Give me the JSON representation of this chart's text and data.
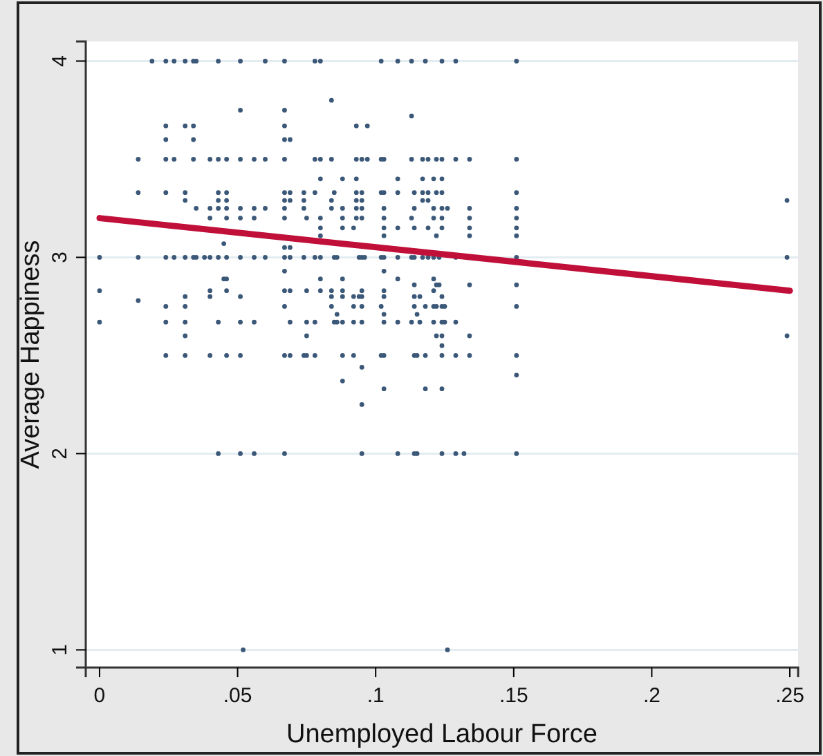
{
  "chart_data": {
    "type": "scatter",
    "xlabel": "Unemployed Labour Force",
    "ylabel": "Average Happiness",
    "xlim": [
      -0.005,
      0.253
    ],
    "ylim": [
      0.91,
      4.1
    ],
    "xticks": [
      {
        "value": 0,
        "label": "0"
      },
      {
        "value": 0.05,
        "label": ".05"
      },
      {
        "value": 0.1,
        "label": ".1"
      },
      {
        "value": 0.15,
        "label": ".15"
      },
      {
        "value": 0.2,
        "label": ".2"
      },
      {
        "value": 0.25,
        "label": ".25"
      }
    ],
    "yticks": [
      1,
      2,
      3,
      4
    ],
    "grid": "y",
    "series": [
      {
        "marker": "circle",
        "color": "#3b5878",
        "x": [
          0.019,
          0.024,
          0.027,
          0.031,
          0.034,
          0.035,
          0.043,
          0.051,
          0.06,
          0.067,
          0.078,
          0.08,
          0.102,
          0.108,
          0.113,
          0.118,
          0.124,
          0.129,
          0.151,
          0.084,
          0.051,
          0.067,
          0.113,
          0.024,
          0.031,
          0.034,
          0.067,
          0.093,
          0.097,
          0.024,
          0.034,
          0.067,
          0.069,
          0.014,
          0.024,
          0.027,
          0.034,
          0.04,
          0.043,
          0.046,
          0.051,
          0.056,
          0.06,
          0.067,
          0.078,
          0.08,
          0.084,
          0.093,
          0.095,
          0.097,
          0.102,
          0.103,
          0.113,
          0.117,
          0.119,
          0.122,
          0.124,
          0.129,
          0.134,
          0.151,
          0.08,
          0.088,
          0.093,
          0.108,
          0.117,
          0.121,
          0.124,
          0.014,
          0.024,
          0.031,
          0.043,
          0.046,
          0.067,
          0.069,
          0.074,
          0.078,
          0.085,
          0.093,
          0.095,
          0.102,
          0.103,
          0.108,
          0.114,
          0.117,
          0.119,
          0.122,
          0.124,
          0.151,
          0.031,
          0.043,
          0.046,
          0.067,
          0.069,
          0.074,
          0.084,
          0.093,
          0.095,
          0.117,
          0.119,
          0.249,
          0.035,
          0.04,
          0.043,
          0.046,
          0.051,
          0.056,
          0.06,
          0.067,
          0.074,
          0.084,
          0.088,
          0.093,
          0.095,
          0.103,
          0.114,
          0.121,
          0.124,
          0.126,
          0.134,
          0.151,
          0.04,
          0.046,
          0.051,
          0.056,
          0.067,
          0.075,
          0.08,
          0.088,
          0.093,
          0.095,
          0.103,
          0.113,
          0.121,
          0.124,
          0.134,
          0.151,
          0.08,
          0.088,
          0.092,
          0.103,
          0.108,
          0.114,
          0.119,
          0.124,
          0.134,
          0.151,
          0.08,
          0.103,
          0.122,
          0.134,
          0.151,
          0.045,
          0.067,
          0.069,
          0.0,
          0.014,
          0.024,
          0.027,
          0.031,
          0.034,
          0.035,
          0.038,
          0.04,
          0.043,
          0.046,
          0.051,
          0.056,
          0.06,
          0.067,
          0.069,
          0.074,
          0.078,
          0.08,
          0.085,
          0.086,
          0.094,
          0.095,
          0.096,
          0.102,
          0.103,
          0.108,
          0.113,
          0.114,
          0.117,
          0.119,
          0.121,
          0.123,
          0.129,
          0.151,
          0.249,
          0.067,
          0.103,
          0.045,
          0.046,
          0.08,
          0.088,
          0.108,
          0.121,
          0.114,
          0.122,
          0.123,
          0.134,
          0.151,
          0.0,
          0.04,
          0.046,
          0.067,
          0.069,
          0.075,
          0.08,
          0.084,
          0.088,
          0.095,
          0.103,
          0.121,
          0.031,
          0.04,
          0.051,
          0.084,
          0.088,
          0.092,
          0.094,
          0.095,
          0.103,
          0.114,
          0.116,
          0.124,
          0.014,
          0.024,
          0.031,
          0.067,
          0.084,
          0.092,
          0.095,
          0.102,
          0.114,
          0.118,
          0.121,
          0.122,
          0.124,
          0.125,
          0.151,
          0.086,
          0.103,
          0.115,
          0.0,
          0.024,
          0.031,
          0.043,
          0.051,
          0.056,
          0.069,
          0.075,
          0.078,
          0.085,
          0.086,
          0.088,
          0.092,
          0.095,
          0.103,
          0.108,
          0.113,
          0.116,
          0.121,
          0.124,
          0.125,
          0.129,
          0.031,
          0.075,
          0.122,
          0.124,
          0.134,
          0.249,
          0.124,
          0.024,
          0.031,
          0.04,
          0.046,
          0.051,
          0.067,
          0.069,
          0.074,
          0.075,
          0.078,
          0.088,
          0.092,
          0.102,
          0.103,
          0.114,
          0.115,
          0.118,
          0.124,
          0.129,
          0.134,
          0.151,
          0.095,
          0.151,
          0.088,
          0.103,
          0.118,
          0.124,
          0.095,
          0.043,
          0.051,
          0.056,
          0.067,
          0.095,
          0.108,
          0.114,
          0.115,
          0.124,
          0.129,
          0.132,
          0.151,
          0.052,
          0.126
        ],
        "values": [
          4,
          4,
          4,
          4,
          4,
          4,
          4,
          4,
          4,
          4,
          4,
          4,
          4,
          4,
          4,
          4,
          4,
          4,
          4,
          3.8,
          3.75,
          3.75,
          3.72,
          3.67,
          3.67,
          3.67,
          3.67,
          3.67,
          3.67,
          3.6,
          3.6,
          3.6,
          3.6,
          3.5,
          3.5,
          3.5,
          3.5,
          3.5,
          3.5,
          3.5,
          3.5,
          3.5,
          3.5,
          3.5,
          3.5,
          3.5,
          3.5,
          3.5,
          3.5,
          3.5,
          3.5,
          3.5,
          3.5,
          3.5,
          3.5,
          3.5,
          3.5,
          3.5,
          3.5,
          3.5,
          3.4,
          3.4,
          3.4,
          3.4,
          3.4,
          3.4,
          3.4,
          3.33,
          3.33,
          3.33,
          3.33,
          3.33,
          3.33,
          3.33,
          3.33,
          3.33,
          3.33,
          3.33,
          3.33,
          3.33,
          3.33,
          3.33,
          3.33,
          3.33,
          3.33,
          3.33,
          3.33,
          3.33,
          3.29,
          3.29,
          3.29,
          3.29,
          3.29,
          3.29,
          3.29,
          3.29,
          3.29,
          3.29,
          3.29,
          3.29,
          3.25,
          3.25,
          3.25,
          3.25,
          3.25,
          3.25,
          3.25,
          3.25,
          3.25,
          3.25,
          3.25,
          3.25,
          3.25,
          3.25,
          3.25,
          3.25,
          3.25,
          3.25,
          3.25,
          3.25,
          3.2,
          3.2,
          3.2,
          3.2,
          3.2,
          3.2,
          3.2,
          3.2,
          3.2,
          3.2,
          3.2,
          3.2,
          3.2,
          3.2,
          3.2,
          3.2,
          3.15,
          3.15,
          3.15,
          3.15,
          3.15,
          3.15,
          3.15,
          3.15,
          3.15,
          3.15,
          3.11,
          3.11,
          3.11,
          3.11,
          3.11,
          3.07,
          3.05,
          3.05,
          3,
          3,
          3,
          3,
          3,
          3,
          3,
          3,
          3,
          3,
          3,
          3,
          3,
          3,
          3,
          3,
          3,
          3,
          3,
          3,
          3,
          3,
          3,
          3,
          3,
          3,
          3,
          3,
          3,
          3,
          3,
          3,
          3,
          3,
          3,
          3,
          2.93,
          2.93,
          2.89,
          2.89,
          2.89,
          2.89,
          2.89,
          2.89,
          2.86,
          2.86,
          2.86,
          2.86,
          2.86,
          2.83,
          2.83,
          2.83,
          2.83,
          2.83,
          2.83,
          2.83,
          2.83,
          2.83,
          2.83,
          2.83,
          2.83,
          2.8,
          2.8,
          2.8,
          2.8,
          2.8,
          2.8,
          2.8,
          2.8,
          2.8,
          2.8,
          2.8,
          2.8,
          2.78,
          2.75,
          2.75,
          2.75,
          2.75,
          2.75,
          2.75,
          2.75,
          2.75,
          2.75,
          2.75,
          2.75,
          2.75,
          2.75,
          2.75,
          2.71,
          2.71,
          2.71,
          2.67,
          2.67,
          2.67,
          2.67,
          2.67,
          2.67,
          2.67,
          2.67,
          2.67,
          2.67,
          2.67,
          2.67,
          2.67,
          2.67,
          2.67,
          2.67,
          2.67,
          2.67,
          2.67,
          2.67,
          2.67,
          2.67,
          2.6,
          2.6,
          2.6,
          2.6,
          2.6,
          2.6,
          2.55,
          2.5,
          2.5,
          2.5,
          2.5,
          2.5,
          2.5,
          2.5,
          2.5,
          2.5,
          2.5,
          2.5,
          2.5,
          2.5,
          2.5,
          2.5,
          2.5,
          2.5,
          2.5,
          2.5,
          2.5,
          2.5,
          2.44,
          2.4,
          2.37,
          2.33,
          2.33,
          2.33,
          2.25,
          2,
          2,
          2,
          2,
          2,
          2,
          2,
          2,
          2,
          2,
          2,
          2,
          1,
          1
        ]
      },
      {
        "type": "line",
        "color": "#c0103a",
        "x": [
          0,
          0.25
        ],
        "values": [
          3.2,
          2.83
        ]
      }
    ]
  }
}
